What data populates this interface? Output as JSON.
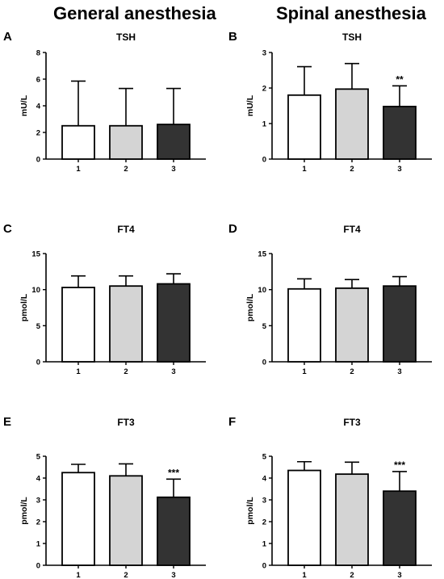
{
  "column_titles": {
    "left": "General anesthesia",
    "right": "Spinal anesthesia"
  },
  "colors": {
    "group1": "#ffffff",
    "group2": "#d4d4d4",
    "group3": "#333333",
    "stroke": "#000000"
  },
  "chart_data": [
    {
      "panel": "A",
      "type": "bar",
      "title": "TSH",
      "ylabel": "mU/L",
      "categories": [
        "1",
        "2",
        "3"
      ],
      "values": [
        2.5,
        2.5,
        2.6
      ],
      "errors": [
        3.35,
        2.8,
        2.7
      ],
      "ylim": [
        0,
        8
      ],
      "yticks": [
        0,
        2,
        4,
        6,
        8
      ],
      "significance": [
        "",
        "",
        ""
      ]
    },
    {
      "panel": "B",
      "type": "bar",
      "title": "TSH",
      "ylabel": "mU/L",
      "categories": [
        "1",
        "2",
        "3"
      ],
      "values": [
        1.8,
        1.97,
        1.48
      ],
      "errors": [
        0.8,
        0.72,
        0.58
      ],
      "ylim": [
        0,
        3
      ],
      "yticks": [
        0,
        1,
        2,
        3
      ],
      "significance": [
        "",
        "",
        "**"
      ]
    },
    {
      "panel": "C",
      "type": "bar",
      "title": "FT4",
      "ylabel": "pmol/L",
      "categories": [
        "1",
        "2",
        "3"
      ],
      "values": [
        10.3,
        10.5,
        10.8
      ],
      "errors": [
        1.6,
        1.4,
        1.4
      ],
      "ylim": [
        0,
        15
      ],
      "yticks": [
        0,
        5,
        10,
        15
      ],
      "significance": [
        "",
        "",
        ""
      ]
    },
    {
      "panel": "D",
      "type": "bar",
      "title": "FT4",
      "ylabel": "pmol/L",
      "categories": [
        "1",
        "2",
        "3"
      ],
      "values": [
        10.1,
        10.2,
        10.5
      ],
      "errors": [
        1.4,
        1.2,
        1.3
      ],
      "ylim": [
        0,
        15
      ],
      "yticks": [
        0,
        5,
        10,
        15
      ],
      "significance": [
        "",
        "",
        ""
      ]
    },
    {
      "panel": "E",
      "type": "bar",
      "title": "FT3",
      "ylabel": "pmol/L",
      "categories": [
        "1",
        "2",
        "3"
      ],
      "values": [
        4.25,
        4.1,
        3.12
      ],
      "errors": [
        0.38,
        0.55,
        0.83
      ],
      "ylim": [
        0,
        5
      ],
      "yticks": [
        0,
        1,
        2,
        3,
        4,
        5
      ],
      "significance": [
        "",
        "",
        "***"
      ]
    },
    {
      "panel": "F",
      "type": "bar",
      "title": "FT3",
      "ylabel": "pmol/L",
      "categories": [
        "1",
        "2",
        "3"
      ],
      "values": [
        4.35,
        4.18,
        3.4
      ],
      "errors": [
        0.4,
        0.55,
        0.9
      ],
      "ylim": [
        0,
        5
      ],
      "yticks": [
        0,
        1,
        2,
        3,
        4,
        5
      ],
      "significance": [
        "",
        "",
        "***"
      ]
    }
  ]
}
